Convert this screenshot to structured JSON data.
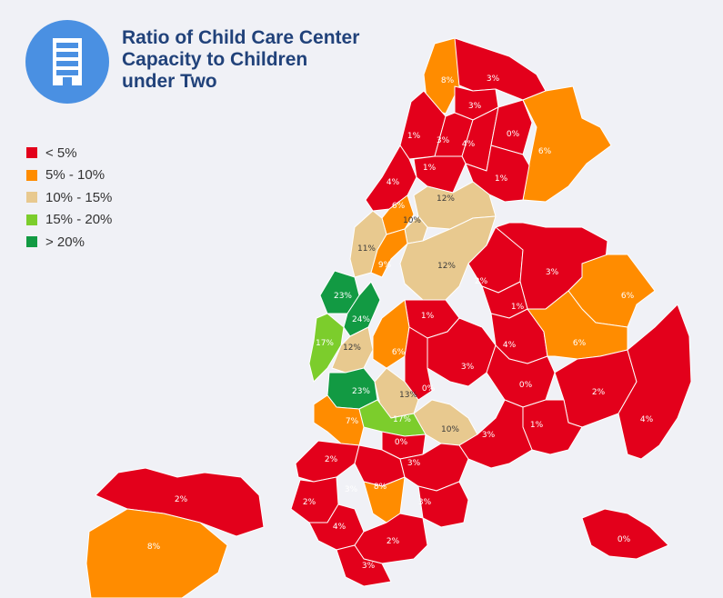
{
  "header": {
    "title_lines": [
      "Ratio of Child Care Center",
      "Capacity to Children",
      "under Two"
    ],
    "icon": "building-icon"
  },
  "legend": {
    "items": [
      {
        "label": "< 5%",
        "color": "#e3001b"
      },
      {
        "label": "5% - 10%",
        "color": "#ff8c00"
      },
      {
        "label": "10% - 15%",
        "color": "#e8c98f"
      },
      {
        "label": "15% - 20%",
        "color": "#7ccd2c"
      },
      {
        "label": "> 20%",
        "color": "#129a43"
      }
    ]
  },
  "districts": [
    {
      "label": "3%",
      "category": "lt5"
    },
    {
      "label": "8%",
      "category": "5to10"
    },
    {
      "label": "3%",
      "category": "lt5"
    },
    {
      "label": "1%",
      "category": "lt5"
    },
    {
      "label": "3%",
      "category": "lt5"
    },
    {
      "label": "4%",
      "category": "lt5"
    },
    {
      "label": "0%",
      "category": "lt5"
    },
    {
      "label": "6%",
      "category": "5to10"
    },
    {
      "label": "1%",
      "category": "lt5"
    },
    {
      "label": "1%",
      "category": "lt5"
    },
    {
      "label": "4%",
      "category": "lt5"
    },
    {
      "label": "6%",
      "category": "5to10"
    },
    {
      "label": "12%",
      "category": "10to15"
    },
    {
      "label": "10%",
      "category": "10to15"
    },
    {
      "label": "11%",
      "category": "10to15"
    },
    {
      "label": "9%",
      "category": "5to10"
    },
    {
      "label": "12%",
      "category": "10to15"
    },
    {
      "label": "2%",
      "category": "lt5"
    },
    {
      "label": "3%",
      "category": "lt5"
    },
    {
      "label": "1%",
      "category": "lt5"
    },
    {
      "label": "6%",
      "category": "5to10"
    },
    {
      "label": "23%",
      "category": "gt20"
    },
    {
      "label": "24%",
      "category": "gt20"
    },
    {
      "label": "17%",
      "category": "15to20"
    },
    {
      "label": "12%",
      "category": "10to15"
    },
    {
      "label": "1%",
      "category": "lt5"
    },
    {
      "label": "6%",
      "category": "5to10"
    },
    {
      "label": "4%",
      "category": "lt5"
    },
    {
      "label": "6%",
      "category": "5to10"
    },
    {
      "label": "3%",
      "category": "lt5"
    },
    {
      "label": "0%",
      "category": "lt5"
    },
    {
      "label": "0%",
      "category": "lt5"
    },
    {
      "label": "23%",
      "category": "gt20"
    },
    {
      "label": "13%",
      "category": "10to15"
    },
    {
      "label": "2%",
      "category": "lt5"
    },
    {
      "label": "4%",
      "category": "lt5"
    },
    {
      "label": "7%",
      "category": "5to10"
    },
    {
      "label": "17%",
      "category": "15to20"
    },
    {
      "label": "10%",
      "category": "10to15"
    },
    {
      "label": "1%",
      "category": "lt5"
    },
    {
      "label": "0%",
      "category": "lt5"
    },
    {
      "label": "3%",
      "category": "lt5"
    },
    {
      "label": "2%",
      "category": "lt5"
    },
    {
      "label": "3%",
      "category": "lt5"
    },
    {
      "label": "2%",
      "category": "lt5"
    },
    {
      "label": "3%",
      "category": "lt5"
    },
    {
      "label": "8%",
      "category": "5to10"
    },
    {
      "label": "3%",
      "category": "lt5"
    },
    {
      "label": "4%",
      "category": "lt5"
    },
    {
      "label": "2%",
      "category": "lt5"
    },
    {
      "label": "0%",
      "category": "lt5"
    },
    {
      "label": "3%",
      "category": "lt5"
    },
    {
      "label": "2%",
      "category": "lt5"
    },
    {
      "label": "8%",
      "category": "5to10"
    }
  ]
}
